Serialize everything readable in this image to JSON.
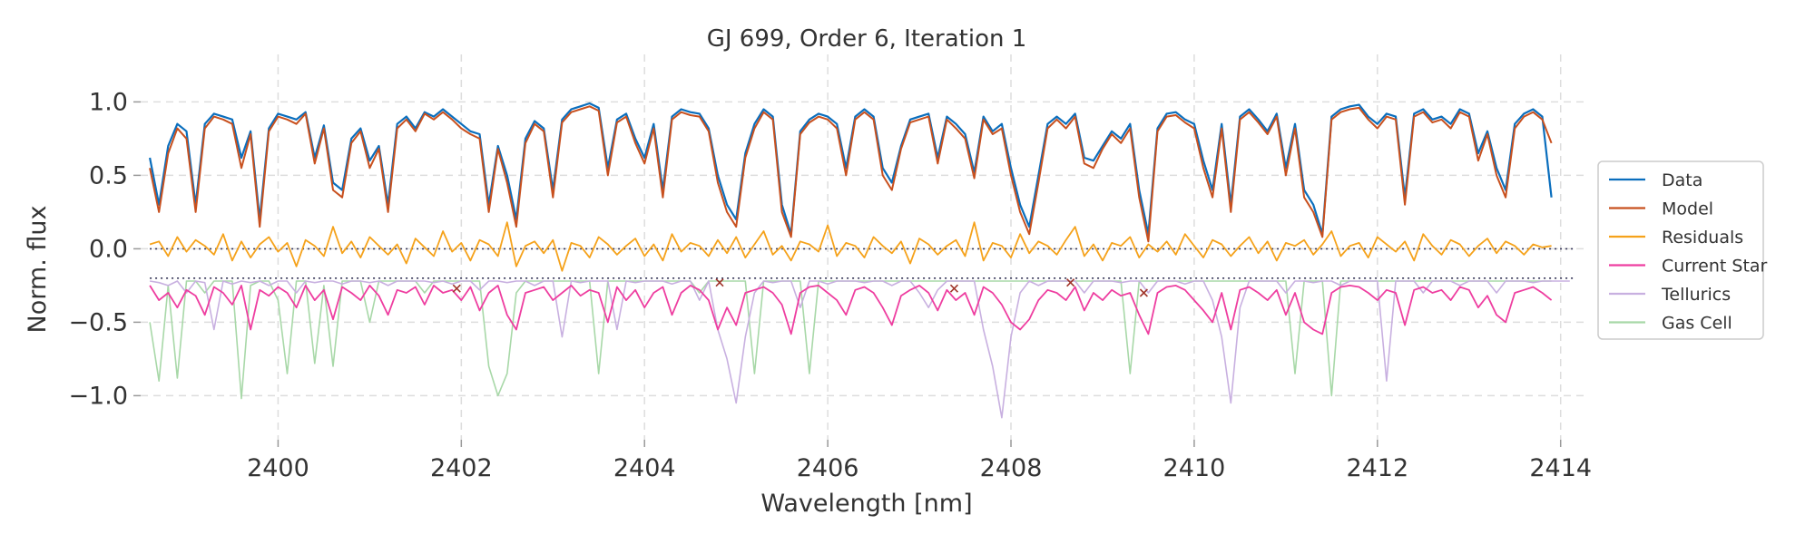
{
  "chart_data": {
    "type": "line",
    "title": "GJ 699, Order 6, Iteration 1",
    "xlabel": "Wavelength [nm]",
    "ylabel": "Norm. flux",
    "xlim": [
      2398.5,
      2414.3
    ],
    "ylim": [
      -1.3,
      1.2
    ],
    "xticks": [
      2400,
      2402,
      2404,
      2406,
      2408,
      2410,
      2412,
      2414
    ],
    "yticks": [
      1.0,
      0.5,
      0.0,
      -0.5,
      -1.0
    ],
    "ytick_labels": [
      "1.0",
      "0.5",
      "0.0",
      "−0.5",
      "−1.0"
    ],
    "grid": true,
    "legend_position": "center-right",
    "reference_lines": [
      0.0,
      -0.2
    ],
    "x_sampling": {
      "start": 2398.6,
      "end": 2414.15,
      "step": 0.1
    },
    "series": [
      {
        "name": "Data",
        "color": "#0a6ebd",
        "values": [
          0.62,
          0.3,
          0.7,
          0.85,
          0.8,
          0.3,
          0.85,
          0.92,
          0.9,
          0.88,
          0.62,
          0.8,
          0.2,
          0.82,
          0.92,
          0.9,
          0.88,
          0.93,
          0.62,
          0.84,
          0.45,
          0.4,
          0.75,
          0.82,
          0.6,
          0.7,
          0.3,
          0.85,
          0.9,
          0.82,
          0.93,
          0.9,
          0.95,
          0.9,
          0.85,
          0.8,
          0.78,
          0.3,
          0.7,
          0.5,
          0.2,
          0.75,
          0.87,
          0.82,
          0.4,
          0.88,
          0.95,
          0.97,
          0.99,
          0.96,
          0.55,
          0.88,
          0.92,
          0.75,
          0.62,
          0.85,
          0.4,
          0.9,
          0.95,
          0.93,
          0.92,
          0.82,
          0.5,
          0.3,
          0.2,
          0.65,
          0.85,
          0.95,
          0.9,
          0.3,
          0.1,
          0.8,
          0.88,
          0.92,
          0.9,
          0.85,
          0.55,
          0.9,
          0.95,
          0.9,
          0.55,
          0.45,
          0.7,
          0.88,
          0.9,
          0.92,
          0.62,
          0.9,
          0.85,
          0.78,
          0.52,
          0.9,
          0.8,
          0.85,
          0.55,
          0.3,
          0.15,
          0.5,
          0.85,
          0.9,
          0.85,
          0.92,
          0.62,
          0.6,
          0.7,
          0.8,
          0.75,
          0.85,
          0.4,
          0.1,
          0.82,
          0.92,
          0.93,
          0.88,
          0.85,
          0.6,
          0.4,
          0.85,
          0.3,
          0.9,
          0.95,
          0.88,
          0.8,
          0.92,
          0.55,
          0.85,
          0.4,
          0.3,
          0.1,
          0.9,
          0.95,
          0.97,
          0.98,
          0.9,
          0.85,
          0.92,
          0.9,
          0.35,
          0.92,
          0.95,
          0.88,
          0.9,
          0.85,
          0.95,
          0.92,
          0.65,
          0.8,
          0.55,
          0.4,
          0.85,
          0.92,
          0.95,
          0.9,
          0.35
        ]
      },
      {
        "name": "Model",
        "color": "#c8501e",
        "values": [
          0.55,
          0.25,
          0.65,
          0.82,
          0.75,
          0.25,
          0.82,
          0.9,
          0.88,
          0.85,
          0.55,
          0.78,
          0.15,
          0.8,
          0.9,
          0.88,
          0.85,
          0.92,
          0.58,
          0.82,
          0.4,
          0.35,
          0.72,
          0.8,
          0.55,
          0.68,
          0.25,
          0.82,
          0.88,
          0.8,
          0.92,
          0.88,
          0.93,
          0.88,
          0.82,
          0.78,
          0.75,
          0.25,
          0.68,
          0.45,
          0.15,
          0.72,
          0.85,
          0.8,
          0.35,
          0.86,
          0.93,
          0.95,
          0.97,
          0.94,
          0.5,
          0.86,
          0.9,
          0.72,
          0.58,
          0.82,
          0.35,
          0.88,
          0.93,
          0.91,
          0.9,
          0.8,
          0.45,
          0.25,
          0.15,
          0.62,
          0.82,
          0.93,
          0.88,
          0.25,
          0.08,
          0.78,
          0.86,
          0.9,
          0.88,
          0.82,
          0.5,
          0.88,
          0.93,
          0.88,
          0.5,
          0.4,
          0.68,
          0.86,
          0.88,
          0.9,
          0.58,
          0.88,
          0.82,
          0.75,
          0.48,
          0.88,
          0.78,
          0.82,
          0.5,
          0.25,
          0.1,
          0.45,
          0.82,
          0.88,
          0.82,
          0.9,
          0.58,
          0.55,
          0.68,
          0.78,
          0.72,
          0.82,
          0.35,
          0.05,
          0.8,
          0.9,
          0.91,
          0.86,
          0.82,
          0.55,
          0.35,
          0.82,
          0.25,
          0.88,
          0.93,
          0.86,
          0.78,
          0.9,
          0.5,
          0.82,
          0.35,
          0.25,
          0.08,
          0.88,
          0.93,
          0.95,
          0.96,
          0.88,
          0.82,
          0.9,
          0.88,
          0.3,
          0.9,
          0.93,
          0.86,
          0.88,
          0.82,
          0.93,
          0.9,
          0.6,
          0.78,
          0.5,
          0.35,
          0.82,
          0.9,
          0.93,
          0.88,
          0.72
        ]
      },
      {
        "name": "Residuals",
        "color": "#f5a21b",
        "values": [
          0.03,
          0.05,
          -0.05,
          0.08,
          -0.02,
          0.06,
          0.02,
          -0.04,
          0.1,
          -0.08,
          0.05,
          -0.06,
          0.03,
          0.08,
          -0.02,
          0.04,
          -0.12,
          0.06,
          0.02,
          -0.05,
          0.15,
          -0.03,
          0.05,
          -0.06,
          0.08,
          0.02,
          -0.04,
          0.03,
          -0.1,
          0.07,
          0.01,
          -0.05,
          0.12,
          -0.02,
          0.04,
          -0.08,
          0.06,
          0.03,
          -0.05,
          0.18,
          -0.12,
          0.02,
          0.05,
          -0.03,
          0.06,
          -0.15,
          0.04,
          0.02,
          -0.06,
          0.08,
          0.03,
          -0.04,
          0.02,
          0.07,
          -0.05,
          0.03,
          -0.08,
          0.1,
          -0.02,
          0.04,
          0.02,
          -0.05,
          0.06,
          -0.03,
          0.08,
          -0.06,
          0.03,
          0.12,
          -0.04,
          0.02,
          -0.08,
          0.05,
          0.03,
          -0.02,
          0.16,
          -0.05,
          0.04,
          0.02,
          -0.06,
          0.08,
          0.02,
          -0.03,
          0.05,
          -0.1,
          0.07,
          0.03,
          -0.04,
          0.02,
          0.06,
          -0.05,
          0.18,
          -0.08,
          0.04,
          0.02,
          -0.06,
          0.1,
          -0.03,
          0.05,
          0.02,
          -0.04,
          0.06,
          0.15,
          -0.05,
          0.03,
          -0.08,
          0.04,
          0.02,
          0.08,
          -0.06,
          0.03,
          -0.02,
          0.05,
          -0.04,
          0.1,
          0.02,
          -0.06,
          0.06,
          0.03,
          -0.05,
          0.02,
          0.08,
          -0.03,
          0.05,
          -0.08,
          0.04,
          0.02,
          0.06,
          -0.04,
          0.03,
          0.12,
          -0.05,
          0.02,
          0.04,
          -0.06,
          0.08,
          0.03,
          -0.02,
          0.05,
          -0.08,
          0.1,
          0.02,
          -0.04,
          0.06,
          0.03,
          -0.05,
          0.02,
          0.07,
          -0.03,
          0.05,
          0.02,
          -0.04,
          0.03,
          0.01,
          0.02
        ]
      },
      {
        "name": "Current Star",
        "color": "#ee3ea0",
        "values": [
          -0.25,
          -0.35,
          -0.3,
          -0.4,
          -0.28,
          -0.32,
          -0.45,
          -0.26,
          -0.3,
          -0.38,
          -0.25,
          -0.55,
          -0.28,
          -0.32,
          -0.26,
          -0.3,
          -0.4,
          -0.25,
          -0.35,
          -0.28,
          -0.48,
          -0.26,
          -0.3,
          -0.35,
          -0.25,
          -0.32,
          -0.45,
          -0.28,
          -0.3,
          -0.26,
          -0.38,
          -0.25,
          -0.3,
          -0.28,
          -0.35,
          -0.26,
          -0.42,
          -0.3,
          -0.25,
          -0.45,
          -0.55,
          -0.3,
          -0.28,
          -0.26,
          -0.35,
          -0.3,
          -0.25,
          -0.32,
          -0.28,
          -0.3,
          -0.5,
          -0.26,
          -0.35,
          -0.28,
          -0.4,
          -0.3,
          -0.26,
          -0.45,
          -0.3,
          -0.25,
          -0.28,
          -0.35,
          -0.55,
          -0.4,
          -0.52,
          -0.3,
          -0.28,
          -0.26,
          -0.3,
          -0.38,
          -0.58,
          -0.3,
          -0.26,
          -0.25,
          -0.3,
          -0.35,
          -0.45,
          -0.28,
          -0.26,
          -0.3,
          -0.4,
          -0.52,
          -0.32,
          -0.28,
          -0.25,
          -0.3,
          -0.42,
          -0.28,
          -0.35,
          -0.3,
          -0.45,
          -0.26,
          -0.3,
          -0.38,
          -0.5,
          -0.55,
          -0.48,
          -0.35,
          -0.28,
          -0.3,
          -0.35,
          -0.26,
          -0.42,
          -0.3,
          -0.35,
          -0.28,
          -0.32,
          -0.3,
          -0.45,
          -0.58,
          -0.3,
          -0.26,
          -0.25,
          -0.28,
          -0.35,
          -0.42,
          -0.5,
          -0.3,
          -0.55,
          -0.28,
          -0.26,
          -0.3,
          -0.35,
          -0.28,
          -0.45,
          -0.3,
          -0.5,
          -0.55,
          -0.58,
          -0.3,
          -0.26,
          -0.25,
          -0.26,
          -0.3,
          -0.35,
          -0.28,
          -0.3,
          -0.52,
          -0.28,
          -0.26,
          -0.3,
          -0.28,
          -0.35,
          -0.26,
          -0.28,
          -0.4,
          -0.32,
          -0.45,
          -0.5,
          -0.3,
          -0.28,
          -0.26,
          -0.3,
          -0.35
        ]
      },
      {
        "name": "Tellurics",
        "color": "#c8b0e0",
        "values": [
          -0.22,
          -0.23,
          -0.25,
          -0.22,
          -0.3,
          -0.22,
          -0.23,
          -0.55,
          -0.22,
          -0.24,
          -0.22,
          -0.23,
          -0.22,
          -0.25,
          -0.22,
          -0.22,
          -0.3,
          -0.22,
          -0.23,
          -0.22,
          -0.22,
          -0.24,
          -0.22,
          -0.22,
          -0.23,
          -0.22,
          -0.25,
          -0.22,
          -0.22,
          -0.22,
          -0.22,
          -0.23,
          -0.22,
          -0.24,
          -0.22,
          -0.22,
          -0.28,
          -0.22,
          -0.22,
          -0.23,
          -0.22,
          -0.22,
          -0.25,
          -0.22,
          -0.22,
          -0.6,
          -0.22,
          -0.23,
          -0.22,
          -0.22,
          -0.22,
          -0.55,
          -0.22,
          -0.23,
          -0.22,
          -0.22,
          -0.22,
          -0.24,
          -0.22,
          -0.22,
          -0.35,
          -0.22,
          -0.55,
          -0.75,
          -1.05,
          -0.6,
          -0.3,
          -0.22,
          -0.23,
          -0.22,
          -0.22,
          -0.4,
          -0.22,
          -0.22,
          -0.24,
          -0.22,
          -0.22,
          -0.22,
          -0.23,
          -0.22,
          -0.22,
          -0.25,
          -0.22,
          -0.22,
          -0.3,
          -0.4,
          -0.28,
          -0.22,
          -0.22,
          -0.22,
          -0.22,
          -0.55,
          -0.8,
          -1.15,
          -0.6,
          -0.3,
          -0.22,
          -0.25,
          -0.22,
          -0.22,
          -0.22,
          -0.22,
          -0.3,
          -0.22,
          -0.22,
          -0.22,
          -0.23,
          -0.22,
          -0.22,
          -0.3,
          -0.22,
          -0.22,
          -0.22,
          -0.24,
          -0.22,
          -0.22,
          -0.35,
          -0.6,
          -1.05,
          -0.4,
          -0.22,
          -0.22,
          -0.22,
          -0.22,
          -0.3,
          -0.22,
          -0.22,
          -0.23,
          -0.22,
          -0.22,
          -0.25,
          -0.22,
          -0.22,
          -0.22,
          -0.22,
          -0.9,
          -0.22,
          -0.22,
          -0.22,
          -0.3,
          -0.22,
          -0.22,
          -0.22,
          -0.25,
          -0.22,
          -0.22,
          -0.22,
          -0.3,
          -0.22,
          -0.22,
          -0.22,
          -0.23,
          -0.22,
          -0.22,
          -0.22,
          -0.22
        ]
      },
      {
        "name": "Gas Cell",
        "color": "#a8d8a8",
        "values": [
          -0.5,
          -0.9,
          -0.25,
          -0.88,
          -0.22,
          -0.22,
          -0.3,
          -0.22,
          -0.22,
          -0.22,
          -1.02,
          -0.25,
          -0.22,
          -0.22,
          -0.35,
          -0.85,
          -0.22,
          -0.22,
          -0.78,
          -0.25,
          -0.8,
          -0.22,
          -0.22,
          -0.22,
          -0.5,
          -0.22,
          -0.22,
          -0.22,
          -0.22,
          -0.22,
          -0.3,
          -0.22,
          -0.22,
          -0.22,
          -0.22,
          -0.22,
          -0.22,
          -0.8,
          -1.0,
          -0.85,
          -0.3,
          -0.22,
          -0.22,
          -0.22,
          -0.22,
          -0.22,
          -0.22,
          -0.22,
          -0.22,
          -0.85,
          -0.22,
          -0.22,
          -0.22,
          -0.22,
          -0.22,
          -0.22,
          -0.22,
          -0.22,
          -0.22,
          -0.22,
          -0.3,
          -0.22,
          -0.22,
          -0.22,
          -0.22,
          -0.22,
          -0.85,
          -0.22,
          -0.22,
          -0.22,
          -0.22,
          -0.22,
          -0.85,
          -0.22,
          -0.22,
          -0.22,
          -0.22,
          -0.22,
          -0.22,
          -0.22,
          -0.22,
          -0.22,
          -0.22,
          -0.22,
          -0.22,
          -0.22,
          -0.22,
          -0.22,
          -0.22,
          -0.22,
          -0.22,
          -0.22,
          -0.22,
          -0.22,
          -0.22,
          -0.22,
          -0.22,
          -0.22,
          -0.22,
          -0.22,
          -0.22,
          -0.22,
          -0.22,
          -0.22,
          -0.22,
          -0.22,
          -0.22,
          -0.85,
          -0.22,
          -0.22,
          -0.22,
          -0.22,
          -0.22,
          -0.22,
          -0.22,
          -0.22,
          -0.22,
          -0.22,
          -0.22,
          -0.22,
          -0.22,
          -0.22,
          -0.22,
          -0.22,
          -0.22,
          -0.85,
          -0.22,
          -0.22,
          -0.22,
          -1.0,
          -0.22,
          -0.22,
          -0.22,
          -0.22,
          -0.22,
          -0.22,
          -0.22,
          -0.22,
          -0.22,
          -0.22,
          -0.22,
          -0.22,
          -0.22,
          -0.22,
          -0.22,
          -0.22,
          -0.22,
          -0.22,
          -0.22,
          -0.22,
          -0.22,
          -0.22,
          -0.22,
          -0.22
        ]
      }
    ],
    "masked_points": {
      "marker": "x",
      "color": "#a0352a",
      "x": [
        2401.95,
        2404.82,
        2407.38,
        2408.65,
        2409.45
      ],
      "y": [
        -0.27,
        -0.23,
        -0.27,
        -0.23,
        -0.3
      ]
    }
  }
}
